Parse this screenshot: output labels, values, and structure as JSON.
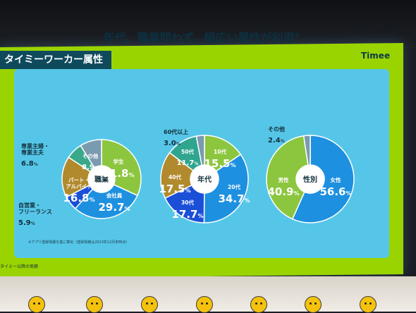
{
  "header": {
    "section_title": "タイミーワーカー属性",
    "brand": "Timee"
  },
  "headline": {
    "text": "年代、職業問わず、幅広い属性が利用",
    "mark": "※"
  },
  "footnote": "※アプリ登録情報を基に算出（登録情報は2023年12月末時点）",
  "bottom_note": "タイミー以降の実績",
  "colors": {
    "slide_green": "#9ad400",
    "panel_blue": "#56c6e8",
    "title_tab": "#0e4a5c"
  },
  "chart_data": [
    {
      "type": "pie",
      "donut": true,
      "title": "",
      "center_label": "職業",
      "slices": [
        {
          "name": "学生",
          "value": 31.8,
          "display": "31.8%",
          "color": "#8cc63f",
          "label_lines": [
            "学生"
          ]
        },
        {
          "name": "会社員",
          "value": 29.7,
          "display": "29.7%",
          "color": "#1e90e0",
          "label_lines": [
            "会社員"
          ]
        },
        {
          "name": "自営業・フリーランス",
          "value": 5.9,
          "display": "5.9%",
          "color": "#1c4fd8",
          "label_lines": [
            "自営業・",
            "フリーランス"
          ]
        },
        {
          "name": "パート・アルバイト",
          "value": 16.8,
          "display": "16.8%",
          "color": "#b08a2c",
          "label_lines": [
            "パート・",
            "アルバイト"
          ]
        },
        {
          "name": "専業主婦・専業主夫",
          "value": 6.8,
          "display": "6.8%",
          "color": "#3aa88a",
          "label_lines": [
            "専業主婦・",
            "専業主夫"
          ]
        },
        {
          "name": "その他",
          "value": 8.9,
          "display": "8.9%",
          "color": "#7a9ab0",
          "label_lines": [
            "その他"
          ]
        }
      ]
    },
    {
      "type": "pie",
      "donut": true,
      "title": "",
      "center_label": "年代",
      "slices": [
        {
          "name": "10代",
          "value": 15.5,
          "display": "15.5%",
          "color": "#8cc63f",
          "label_lines": [
            "10代"
          ]
        },
        {
          "name": "20代",
          "value": 34.7,
          "display": "34.7%",
          "color": "#1e90e0",
          "label_lines": [
            "20代"
          ]
        },
        {
          "name": "30代",
          "value": 17.7,
          "display": "17.7%",
          "color": "#1c4fd8",
          "label_lines": [
            "30代"
          ]
        },
        {
          "name": "40代",
          "value": 17.5,
          "display": "17.5%",
          "color": "#b08a2c",
          "label_lines": [
            "40代"
          ]
        },
        {
          "name": "50代",
          "value": 11.7,
          "display": "11.7%",
          "color": "#2fa590",
          "label_lines": [
            "50代"
          ]
        },
        {
          "name": "60代以上",
          "value": 3.0,
          "display": "3.0%",
          "color": "#7a9ab0",
          "label_lines": [
            "60代以上"
          ]
        }
      ]
    },
    {
      "type": "pie",
      "donut": true,
      "title": "",
      "center_label": "性別",
      "slices": [
        {
          "name": "女性",
          "value": 56.6,
          "display": "56.6%",
          "color": "#1e90e0",
          "label_lines": [
            "女性"
          ]
        },
        {
          "name": "男性",
          "value": 40.9,
          "display": "40.9%",
          "color": "#8cc63f",
          "label_lines": [
            "男性"
          ]
        },
        {
          "name": "その他",
          "value": 2.4,
          "display": "2.4%",
          "color": "#7a9ab0",
          "label_lines": [
            "その他"
          ]
        }
      ]
    }
  ]
}
